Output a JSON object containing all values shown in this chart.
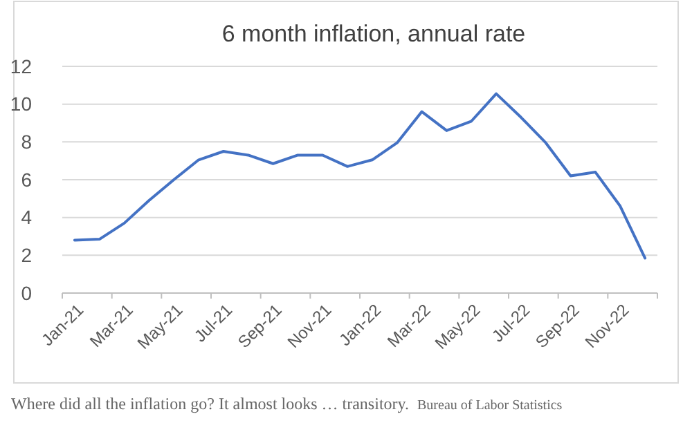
{
  "chart_data": {
    "type": "line",
    "title": "6 month inflation, annual rate",
    "categories": [
      "Jan-21",
      null,
      "Mar-21",
      null,
      "May-21",
      null,
      "Jul-21",
      null,
      "Sep-21",
      null,
      "Nov-21",
      null,
      "Jan-22",
      null,
      "Mar-22",
      null,
      "May-22",
      null,
      "Jul-22",
      null,
      "Sep-22",
      null,
      "Nov-22",
      null
    ],
    "series": [
      {
        "color": "#4472c4",
        "values": [
          2.8,
          2.85,
          3.7,
          4.9,
          6.0,
          7.05,
          7.5,
          7.3,
          6.85,
          7.3,
          7.3,
          6.7,
          7.05,
          7.95,
          9.6,
          8.6,
          9.1,
          10.55,
          9.3,
          7.95,
          6.2,
          6.4,
          4.6,
          1.85
        ]
      }
    ],
    "ylim": [
      0,
      12
    ],
    "yticks": [
      0,
      2,
      4,
      6,
      8,
      10,
      12
    ],
    "grid": "y",
    "marker": "none",
    "line_style": "solid",
    "annotations": [
      "Where did all the inflation go? It almost looks … transitory.",
      "Bureau of Labor Statistics"
    ]
  }
}
